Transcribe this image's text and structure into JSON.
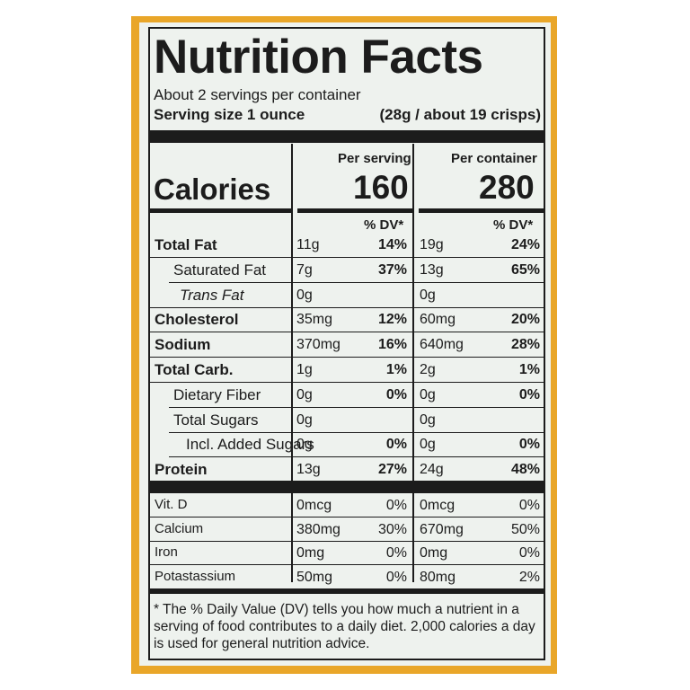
{
  "panel": {
    "title": "Nutrition Facts",
    "servings_per_container": "About 2 servings per container",
    "serving_size_label": "Serving size 1 ounce",
    "serving_size_value": "(28g / about 19 crisps)",
    "colors": {
      "bag": "#e9a629",
      "label_bg": "#eef2ee",
      "ink": "#1c1c1c"
    }
  },
  "columns": {
    "per_serving": "Per serving",
    "per_container": "Per container",
    "dv_label": "% DV*"
  },
  "calories": {
    "label": "Calories",
    "per_serving": "160",
    "per_container": "280"
  },
  "nutrients": [
    {
      "name": "Total Fat",
      "style": "bold",
      "s_amt": "11g",
      "s_dv": "14%",
      "c_amt": "19g",
      "c_dv": "24%"
    },
    {
      "name": "Saturated Fat",
      "style": "indent",
      "s_amt": "7g",
      "s_dv": "37%",
      "c_amt": "13g",
      "c_dv": "65%"
    },
    {
      "name": "Trans Fat",
      "style": "indent-italic",
      "s_amt": "0g",
      "s_dv": "",
      "c_amt": "0g",
      "c_dv": ""
    },
    {
      "name": "Cholesterol",
      "style": "bold",
      "s_amt": "35mg",
      "s_dv": "12%",
      "c_amt": "60mg",
      "c_dv": "20%"
    },
    {
      "name": "Sodium",
      "style": "bold",
      "s_amt": "370mg",
      "s_dv": "16%",
      "c_amt": "640mg",
      "c_dv": "28%"
    },
    {
      "name": "Total Carb.",
      "style": "bold",
      "s_amt": "1g",
      "s_dv": "1%",
      "c_amt": "2g",
      "c_dv": "1%"
    },
    {
      "name": "Dietary Fiber",
      "style": "indent",
      "s_amt": "0g",
      "s_dv": "0%",
      "c_amt": "0g",
      "c_dv": "0%"
    },
    {
      "name": "Total Sugars",
      "style": "indent",
      "s_amt": "0g",
      "s_dv": "",
      "c_amt": "0g",
      "c_dv": ""
    },
    {
      "name": "Incl. Added Sugars",
      "style": "indent2",
      "s_amt": "0g",
      "s_dv": "0%",
      "c_amt": "0g",
      "c_dv": "0%"
    },
    {
      "name": "Protein",
      "style": "bold",
      "s_amt": "13g",
      "s_dv": "27%",
      "c_amt": "24g",
      "c_dv": "48%"
    }
  ],
  "vitamins": [
    {
      "name": "Vit. D",
      "s_amt": "0mcg",
      "s_dv": "0%",
      "c_amt": "0mcg",
      "c_dv": "0%"
    },
    {
      "name": "Calcium",
      "s_amt": "380mg",
      "s_dv": "30%",
      "c_amt": "670mg",
      "c_dv": "50%"
    },
    {
      "name": "Iron",
      "s_amt": "0mg",
      "s_dv": "0%",
      "c_amt": "0mg",
      "c_dv": "0%"
    },
    {
      "name": "Potastassium",
      "s_amt": "50mg",
      "s_dv": "0%",
      "c_amt": "80mg",
      "c_dv": "2%"
    }
  ],
  "footnote": "* The % Daily Value (DV) tells you how much a nutrient in a serving of food contributes to a daily diet. 2,000 calories a day is used for general nutrition advice."
}
